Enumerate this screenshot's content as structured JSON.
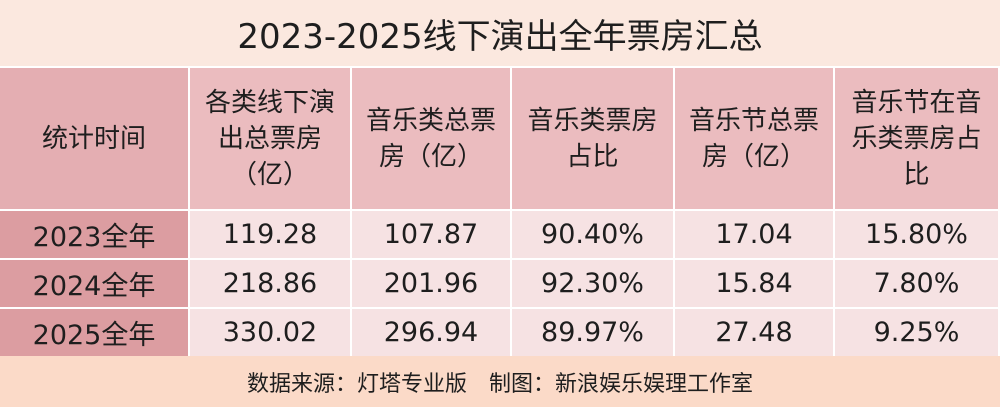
{
  "title": "2023-2025线下演出全年票房汇总",
  "table": {
    "header": [
      "统计时间",
      "各类线下演出总票房（亿）",
      "音乐类总票房（亿）",
      "音乐类票房占比",
      "音乐节总票房（亿）",
      "音乐节在音乐类票房占比"
    ],
    "rows": [
      [
        "2023全年",
        "119.28",
        "107.87",
        "90.40%",
        "17.04",
        "15.80%"
      ],
      [
        "2024全年",
        "218.86",
        "201.96",
        "92.30%",
        "15.84",
        "7.80%"
      ],
      [
        "2025全年",
        "330.02",
        "296.94",
        "89.97%",
        "27.48",
        "9.25%"
      ]
    ]
  },
  "footer": "数据来源：灯塔专业版　制图：新浪娱乐娱理工作室"
}
